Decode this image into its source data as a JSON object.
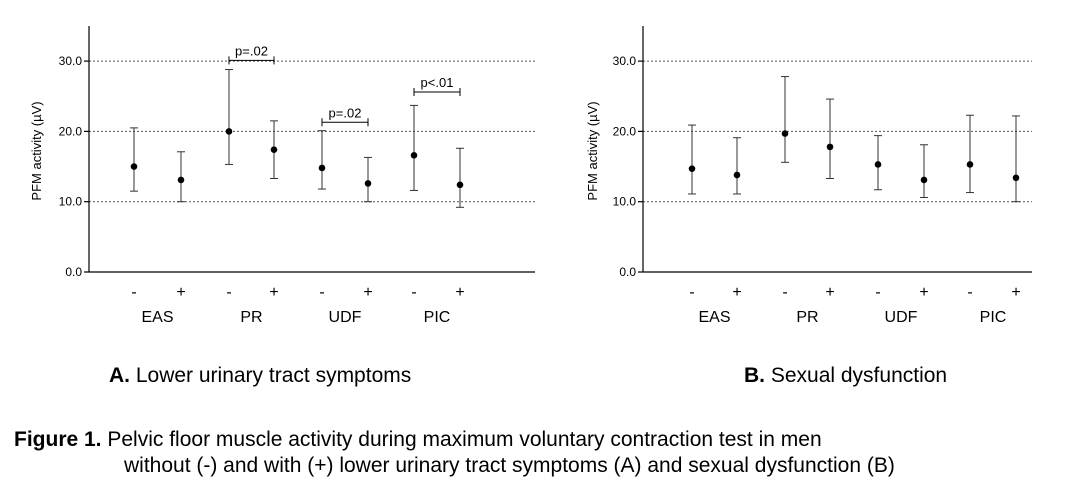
{
  "chart_data": [
    {
      "type": "scatter",
      "panel": "A",
      "panel_label_bold": "A.",
      "panel_label_text": " Lower urinary tract symptoms",
      "ylabel": "PFM activity (µV)",
      "ylim": [
        0,
        35
      ],
      "yticks": [
        0,
        10,
        20,
        30
      ],
      "ytick_labels": [
        "0.0",
        "10.0",
        "20.0",
        "30.0"
      ],
      "grid": "dotted horizontal at 10, 20, 30",
      "groups": [
        "EAS",
        "PR",
        "UDF",
        "PIC"
      ],
      "conditions": [
        "-",
        "+"
      ],
      "points": [
        {
          "group": "EAS",
          "condition": "-",
          "mean": 15.0,
          "lower": 11.5,
          "upper": 20.5
        },
        {
          "group": "EAS",
          "condition": "+",
          "mean": 13.1,
          "lower": 10.0,
          "upper": 17.1
        },
        {
          "group": "PR",
          "condition": "-",
          "mean": 20.0,
          "lower": 15.3,
          "upper": 28.8
        },
        {
          "group": "PR",
          "condition": "+",
          "mean": 17.4,
          "lower": 13.3,
          "upper": 21.5
        },
        {
          "group": "UDF",
          "condition": "-",
          "mean": 14.8,
          "lower": 11.8,
          "upper": 20.1
        },
        {
          "group": "UDF",
          "condition": "+",
          "mean": 12.6,
          "lower": 10.0,
          "upper": 16.3
        },
        {
          "group": "PIC",
          "condition": "-",
          "mean": 16.6,
          "lower": 11.6,
          "upper": 23.7
        },
        {
          "group": "PIC",
          "condition": "+",
          "mean": 12.4,
          "lower": 9.2,
          "upper": 17.6
        }
      ],
      "annotations": [
        {
          "group": "PR",
          "text": "p=.02",
          "y": 30.1
        },
        {
          "group": "UDF",
          "text": "p=.02",
          "y": 21.3
        },
        {
          "group": "PIC",
          "text": "p<.01",
          "y": 25.6
        }
      ]
    },
    {
      "type": "scatter",
      "panel": "B",
      "panel_label_bold": "B.",
      "panel_label_text": " Sexual dysfunction",
      "ylabel": "PFM activity (µV)",
      "ylim": [
        0,
        35
      ],
      "yticks": [
        0,
        10,
        20,
        30
      ],
      "ytick_labels": [
        "0.0",
        "10.0",
        "20.0",
        "30.0"
      ],
      "grid": "dotted horizontal at 10, 20, 30",
      "groups": [
        "EAS",
        "PR",
        "UDF",
        "PIC"
      ],
      "conditions": [
        "-",
        "+"
      ],
      "points": [
        {
          "group": "EAS",
          "condition": "-",
          "mean": 14.7,
          "lower": 11.1,
          "upper": 20.9
        },
        {
          "group": "EAS",
          "condition": "+",
          "mean": 13.8,
          "lower": 11.1,
          "upper": 19.1
        },
        {
          "group": "PR",
          "condition": "-",
          "mean": 19.7,
          "lower": 15.6,
          "upper": 27.8
        },
        {
          "group": "PR",
          "condition": "+",
          "mean": 17.8,
          "lower": 13.3,
          "upper": 24.6
        },
        {
          "group": "UDF",
          "condition": "-",
          "mean": 15.3,
          "lower": 11.7,
          "upper": 19.4
        },
        {
          "group": "UDF",
          "condition": "+",
          "mean": 13.1,
          "lower": 10.6,
          "upper": 18.1
        },
        {
          "group": "PIC",
          "condition": "-",
          "mean": 15.3,
          "lower": 11.3,
          "upper": 22.3
        },
        {
          "group": "PIC",
          "condition": "+",
          "mean": 13.4,
          "lower": 10.0,
          "upper": 22.2
        }
      ],
      "annotations": []
    }
  ],
  "caption": {
    "bold": "Figure 1.",
    "line1": " Pelvic floor muscle activity during maximum voluntary contraction test in men",
    "line2": "without (-) and with (+) lower urinary tract symptoms (A) and sexual dysfunction (B)"
  }
}
